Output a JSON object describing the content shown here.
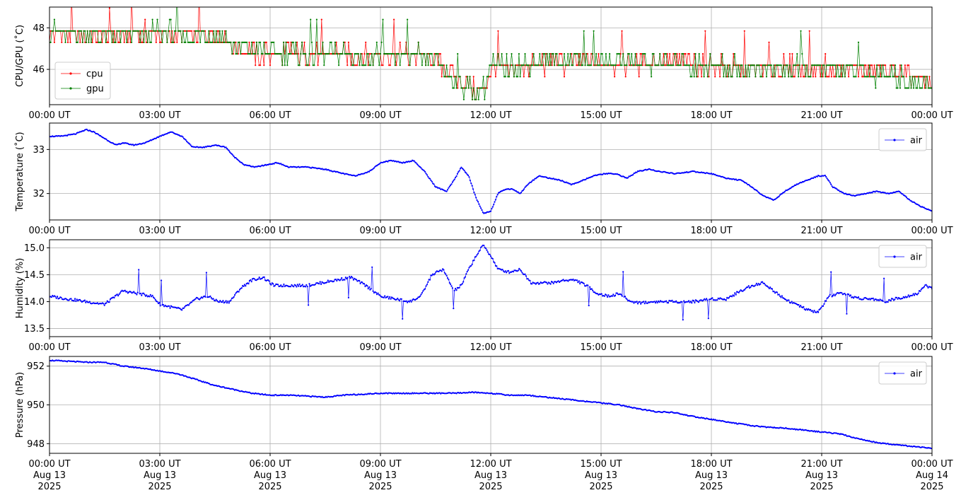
{
  "chart_data": [
    {
      "type": "line",
      "ylabel": "CPU/GPU (˚C)",
      "xlim": [
        "2025-08-13 00:00",
        "2025-08-14 00:00"
      ],
      "ylim": [
        44.3,
        49.0
      ],
      "y_ticks": [
        46,
        48
      ],
      "x_tick_labels": [
        "00:00 UT",
        "03:00 UT",
        "06:00 UT",
        "09:00 UT",
        "12:00 UT",
        "15:00 UT",
        "18:00 UT",
        "21:00 UT",
        "00:00 UT"
      ],
      "grid": true,
      "legend": "lower-left",
      "series": [
        {
          "name": "cpu",
          "color": "#ff0000",
          "x_hours": [
            0,
            0.5,
            1,
            1.5,
            2,
            2.5,
            3,
            3.5,
            4,
            4.5,
            4.8,
            5,
            5.5,
            6,
            6.5,
            7,
            7.5,
            8,
            8.5,
            9,
            9.5,
            10,
            10.3,
            10.6,
            10.9,
            11.2,
            11.5,
            11.8,
            12,
            12.4,
            12.8,
            13,
            13.5,
            14,
            14.5,
            15,
            15.5,
            16,
            16.5,
            17,
            17.5,
            18,
            18.5,
            19,
            19.5,
            20,
            20.5,
            21,
            21.5,
            22,
            22.5,
            23,
            23.5,
            24
          ],
          "values": [
            47.7,
            47.7,
            47.7,
            47.6,
            47.7,
            47.7,
            47.7,
            47.7,
            47.7,
            47.7,
            47.5,
            47.1,
            46.8,
            46.7,
            46.8,
            46.7,
            46.7,
            46.8,
            46.6,
            46.7,
            46.7,
            46.7,
            46.6,
            46.3,
            45.9,
            45.4,
            45.1,
            45.1,
            46.1,
            46.0,
            46.1,
            46.2,
            46.3,
            46.3,
            46.4,
            46.3,
            46.3,
            46.3,
            46.3,
            46.3,
            46.2,
            46.2,
            46.1,
            46.1,
            46.0,
            46.1,
            46.1,
            46.1,
            46.0,
            46.0,
            45.9,
            45.8,
            45.5,
            45.3
          ]
        },
        {
          "name": "gpu",
          "color": "#008000",
          "x_hours": [
            0,
            0.5,
            1,
            1.5,
            2,
            2.5,
            3,
            3.5,
            4,
            4.5,
            4.8,
            5,
            5.5,
            6,
            6.5,
            7,
            7.5,
            8,
            8.5,
            9,
            9.5,
            10,
            10.3,
            10.6,
            10.9,
            11.2,
            11.5,
            11.8,
            12,
            12.4,
            12.8,
            13,
            13.5,
            14,
            14.5,
            15,
            15.5,
            16,
            16.5,
            17,
            17.5,
            18,
            18.5,
            19,
            19.5,
            20,
            20.5,
            21,
            21.5,
            22,
            22.5,
            23,
            23.5,
            24
          ],
          "values": [
            47.8,
            47.7,
            47.7,
            47.6,
            47.7,
            47.7,
            47.8,
            47.7,
            47.6,
            47.7,
            47.5,
            47.2,
            46.9,
            46.8,
            46.8,
            46.7,
            46.7,
            46.8,
            46.6,
            46.7,
            46.7,
            46.6,
            46.6,
            46.2,
            45.8,
            45.3,
            45.0,
            45.0,
            46.2,
            46.1,
            46.2,
            46.3,
            46.4,
            46.4,
            46.4,
            46.3,
            46.4,
            46.3,
            46.3,
            46.3,
            46.2,
            46.2,
            46.1,
            46.1,
            46.0,
            46.1,
            46.1,
            46.0,
            46.0,
            45.9,
            45.8,
            45.7,
            45.4,
            45.2
          ]
        }
      ]
    },
    {
      "type": "line",
      "ylabel": "Temperature (˚C)",
      "xlim": [
        "2025-08-13 00:00",
        "2025-08-14 00:00"
      ],
      "ylim": [
        31.4,
        33.6
      ],
      "y_ticks": [
        32,
        33
      ],
      "x_tick_labels": [
        "00:00 UT",
        "03:00 UT",
        "06:00 UT",
        "09:00 UT",
        "12:00 UT",
        "15:00 UT",
        "18:00 UT",
        "21:00 UT",
        "00:00 UT"
      ],
      "grid": true,
      "legend": "top-right",
      "series": [
        {
          "name": "air",
          "color": "#0000ff",
          "x_hours": [
            0,
            0.3,
            0.7,
            1.0,
            1.2,
            1.5,
            1.8,
            2.0,
            2.3,
            2.6,
            3.0,
            3.3,
            3.6,
            3.9,
            4.2,
            4.5,
            4.8,
            5.0,
            5.3,
            5.6,
            5.9,
            6.2,
            6.5,
            7.0,
            7.5,
            8.0,
            8.3,
            8.7,
            9.0,
            9.3,
            9.6,
            9.9,
            10.2,
            10.5,
            10.8,
            11.0,
            11.2,
            11.4,
            11.6,
            11.8,
            12.0,
            12.2,
            12.4,
            12.6,
            12.8,
            13.0,
            13.3,
            13.6,
            13.9,
            14.2,
            14.5,
            14.8,
            15.1,
            15.4,
            15.7,
            16.0,
            16.3,
            16.6,
            17.0,
            17.5,
            18.0,
            18.4,
            18.8,
            19.1,
            19.4,
            19.7,
            20.0,
            20.3,
            20.6,
            20.9,
            21.1,
            21.3,
            21.6,
            21.9,
            22.2,
            22.5,
            22.8,
            23.1,
            23.4,
            23.7,
            24.0
          ],
          "values": [
            33.3,
            33.3,
            33.35,
            33.45,
            33.4,
            33.25,
            33.1,
            33.15,
            33.1,
            33.15,
            33.3,
            33.4,
            33.3,
            33.05,
            33.05,
            33.1,
            33.05,
            32.85,
            32.65,
            32.6,
            32.65,
            32.7,
            32.6,
            32.6,
            32.55,
            32.45,
            32.4,
            32.5,
            32.7,
            32.75,
            32.7,
            32.75,
            32.5,
            32.15,
            32.05,
            32.3,
            32.6,
            32.4,
            31.9,
            31.55,
            31.6,
            32.0,
            32.1,
            32.1,
            32.0,
            32.2,
            32.4,
            32.35,
            32.3,
            32.2,
            32.3,
            32.4,
            32.45,
            32.45,
            32.35,
            32.5,
            32.55,
            32.5,
            32.45,
            32.5,
            32.45,
            32.35,
            32.3,
            32.15,
            31.95,
            31.85,
            32.05,
            32.2,
            32.3,
            32.4,
            32.4,
            32.15,
            32.0,
            31.95,
            32.0,
            32.05,
            32.0,
            32.05,
            31.85,
            31.7,
            31.6
          ]
        }
      ]
    },
    {
      "type": "line",
      "ylabel": "Humidity (%)",
      "xlim": [
        "2025-08-13 00:00",
        "2025-08-14 00:00"
      ],
      "ylim": [
        13.35,
        15.15
      ],
      "y_ticks": [
        13.5,
        14.0,
        14.5,
        15.0
      ],
      "x_tick_labels": [
        "00:00 UT",
        "03:00 UT",
        "06:00 UT",
        "09:00 UT",
        "12:00 UT",
        "15:00 UT",
        "18:00 UT",
        "21:00 UT",
        "00:00 UT"
      ],
      "grid": true,
      "legend": "top-right",
      "series": [
        {
          "name": "air",
          "color": "#0000ff",
          "x_hours": [
            0,
            0.5,
            1.0,
            1.5,
            1.8,
            2.0,
            2.4,
            2.8,
            3.0,
            3.3,
            3.6,
            4.0,
            4.3,
            4.6,
            4.9,
            5.2,
            5.5,
            5.8,
            6.1,
            6.4,
            6.7,
            7.0,
            7.4,
            7.8,
            8.2,
            8.6,
            9.0,
            9.4,
            9.8,
            10.1,
            10.4,
            10.7,
            11.0,
            11.2,
            11.4,
            11.6,
            11.8,
            12.0,
            12.2,
            12.5,
            12.8,
            13.1,
            13.4,
            13.7,
            14.0,
            14.3,
            14.6,
            14.9,
            15.2,
            15.5,
            15.8,
            16.1,
            16.5,
            17.0,
            17.5,
            18.0,
            18.4,
            18.8,
            19.1,
            19.4,
            19.7,
            20.0,
            20.3,
            20.6,
            20.9,
            21.2,
            21.5,
            21.8,
            22.1,
            22.4,
            22.7,
            23.0,
            23.3,
            23.6,
            23.8,
            24.0
          ],
          "values": [
            14.1,
            14.05,
            14.0,
            13.95,
            14.1,
            14.2,
            14.15,
            14.1,
            13.95,
            13.9,
            13.85,
            14.05,
            14.1,
            14.0,
            14.0,
            14.25,
            14.4,
            14.45,
            14.3,
            14.3,
            14.3,
            14.3,
            14.35,
            14.4,
            14.45,
            14.3,
            14.1,
            14.05,
            14.0,
            14.1,
            14.5,
            14.6,
            14.2,
            14.3,
            14.6,
            14.85,
            15.05,
            14.85,
            14.6,
            14.55,
            14.6,
            14.35,
            14.35,
            14.35,
            14.4,
            14.4,
            14.3,
            14.15,
            14.1,
            14.15,
            14.0,
            13.98,
            14.0,
            14.0,
            14.0,
            14.05,
            14.05,
            14.2,
            14.3,
            14.35,
            14.2,
            14.05,
            13.95,
            13.85,
            13.8,
            14.1,
            14.15,
            14.1,
            14.05,
            14.05,
            14.0,
            14.05,
            14.1,
            14.15,
            14.3,
            14.25
          ]
        }
      ]
    },
    {
      "type": "line",
      "ylabel": "Pressure (hPa)",
      "xlim": [
        "2025-08-13 00:00",
        "2025-08-14 00:00"
      ],
      "ylim": [
        947.5,
        952.5
      ],
      "y_ticks": [
        948,
        950,
        952
      ],
      "x_tick_labels": [
        "00:00 UT\nAug 13\n2025",
        "03:00 UT\nAug 13\n2025",
        "06:00 UT\nAug 13\n2025",
        "09:00 UT\nAug 13\n2025",
        "12:00 UT\nAug 13\n2025",
        "15:00 UT\nAug 13\n2025",
        "18:00 UT\nAug 13\n2025",
        "21:00 UT\nAug 13\n2025",
        "00:00 UT\nAug 14\n2025"
      ],
      "grid": true,
      "legend": "top-right",
      "series": [
        {
          "name": "air",
          "color": "#0000ff",
          "x_hours": [
            0,
            0.5,
            1.0,
            1.5,
            2.0,
            2.5,
            3.0,
            3.5,
            4.0,
            4.5,
            5.0,
            5.5,
            6.0,
            6.5,
            7.0,
            7.5,
            8.0,
            8.5,
            9.0,
            9.5,
            10.0,
            10.5,
            11.0,
            11.5,
            12.0,
            12.5,
            13.0,
            13.5,
            14.0,
            14.5,
            15.0,
            15.5,
            16.0,
            16.5,
            17.0,
            17.5,
            18.0,
            18.5,
            19.0,
            19.5,
            20.0,
            20.5,
            21.0,
            21.5,
            22.0,
            22.5,
            23.0,
            23.5,
            24.0
          ],
          "values": [
            952.3,
            952.25,
            952.2,
            952.2,
            952.0,
            951.9,
            951.75,
            951.6,
            951.3,
            951.0,
            950.8,
            950.6,
            950.5,
            950.5,
            950.45,
            950.4,
            950.5,
            950.55,
            950.6,
            950.6,
            950.6,
            950.6,
            950.6,
            950.65,
            950.6,
            950.5,
            950.5,
            950.4,
            950.3,
            950.2,
            950.1,
            950.0,
            949.8,
            949.65,
            949.6,
            949.4,
            949.25,
            949.1,
            948.95,
            948.85,
            948.8,
            948.7,
            948.6,
            948.5,
            948.25,
            948.05,
            947.95,
            947.85,
            947.75
          ]
        }
      ]
    }
  ]
}
